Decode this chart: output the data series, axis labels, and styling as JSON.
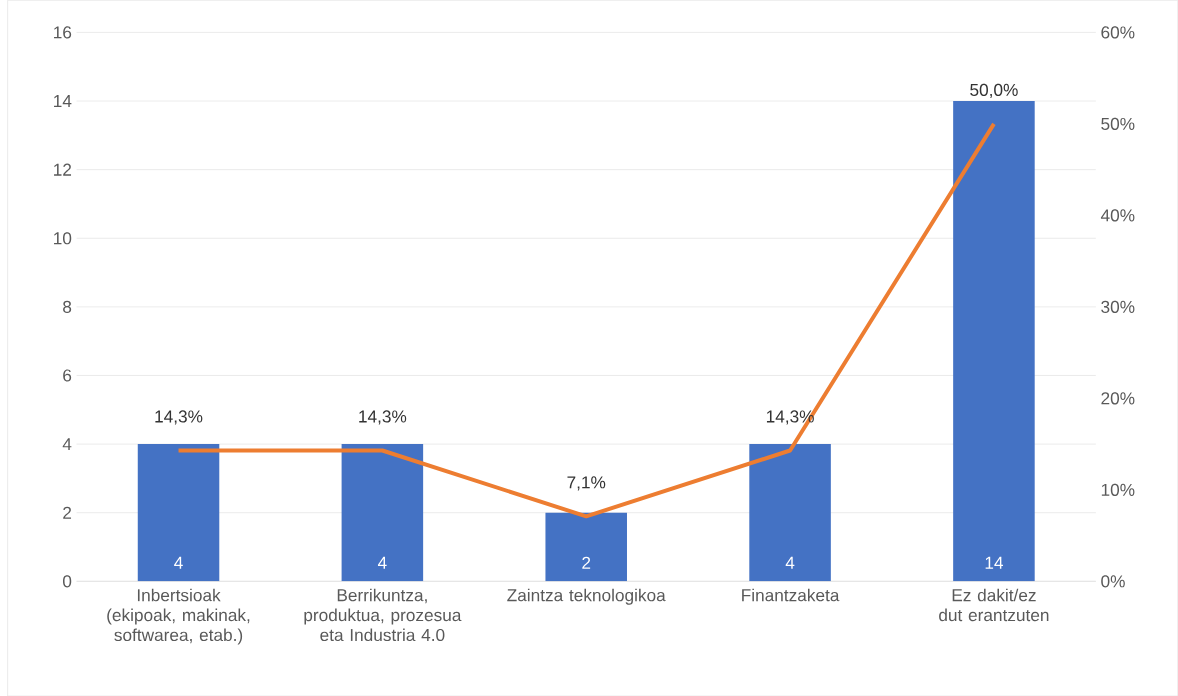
{
  "chart_data": {
    "type": "bar",
    "categories": [
      "Inbertsioak (ekipoak, makinak, softwarea, etab.)",
      "Berrikuntza, produktua, prozesua eta Industria 4.0",
      "Zaintza teknologikoa",
      "Finantzaketa",
      "Ez dakit/ez dut erantzuten"
    ],
    "series": [
      {
        "color": "#4472c4",
        "values": [
          4,
          4,
          2,
          4,
          14
        ],
        "value_labels": [
          "4",
          "4",
          "2",
          "4",
          "14"
        ]
      },
      {
        "type": "line",
        "axis": "y2",
        "color": "#ed7d31",
        "values": [
          14.3,
          14.3,
          7.1,
          14.3,
          50.0
        ],
        "value_labels": [
          "14,3%",
          "14,3%",
          "7,1%",
          "14,3%",
          "50,0%"
        ]
      }
    ],
    "ylim": [
      0,
      16
    ],
    "yticks": [
      0,
      2,
      4,
      6,
      8,
      10,
      12,
      14,
      16
    ],
    "y2lim": [
      0,
      60
    ],
    "y2ticks": [
      {
        "value": 0,
        "label": "0%"
      },
      {
        "value": 10,
        "label": "10%"
      },
      {
        "value": 20,
        "label": "20%"
      },
      {
        "value": 30,
        "label": "30%"
      },
      {
        "value": 40,
        "label": "40%"
      },
      {
        "value": 50,
        "label": "50%"
      },
      {
        "value": 60,
        "label": "60%"
      }
    ],
    "grid": "y"
  }
}
